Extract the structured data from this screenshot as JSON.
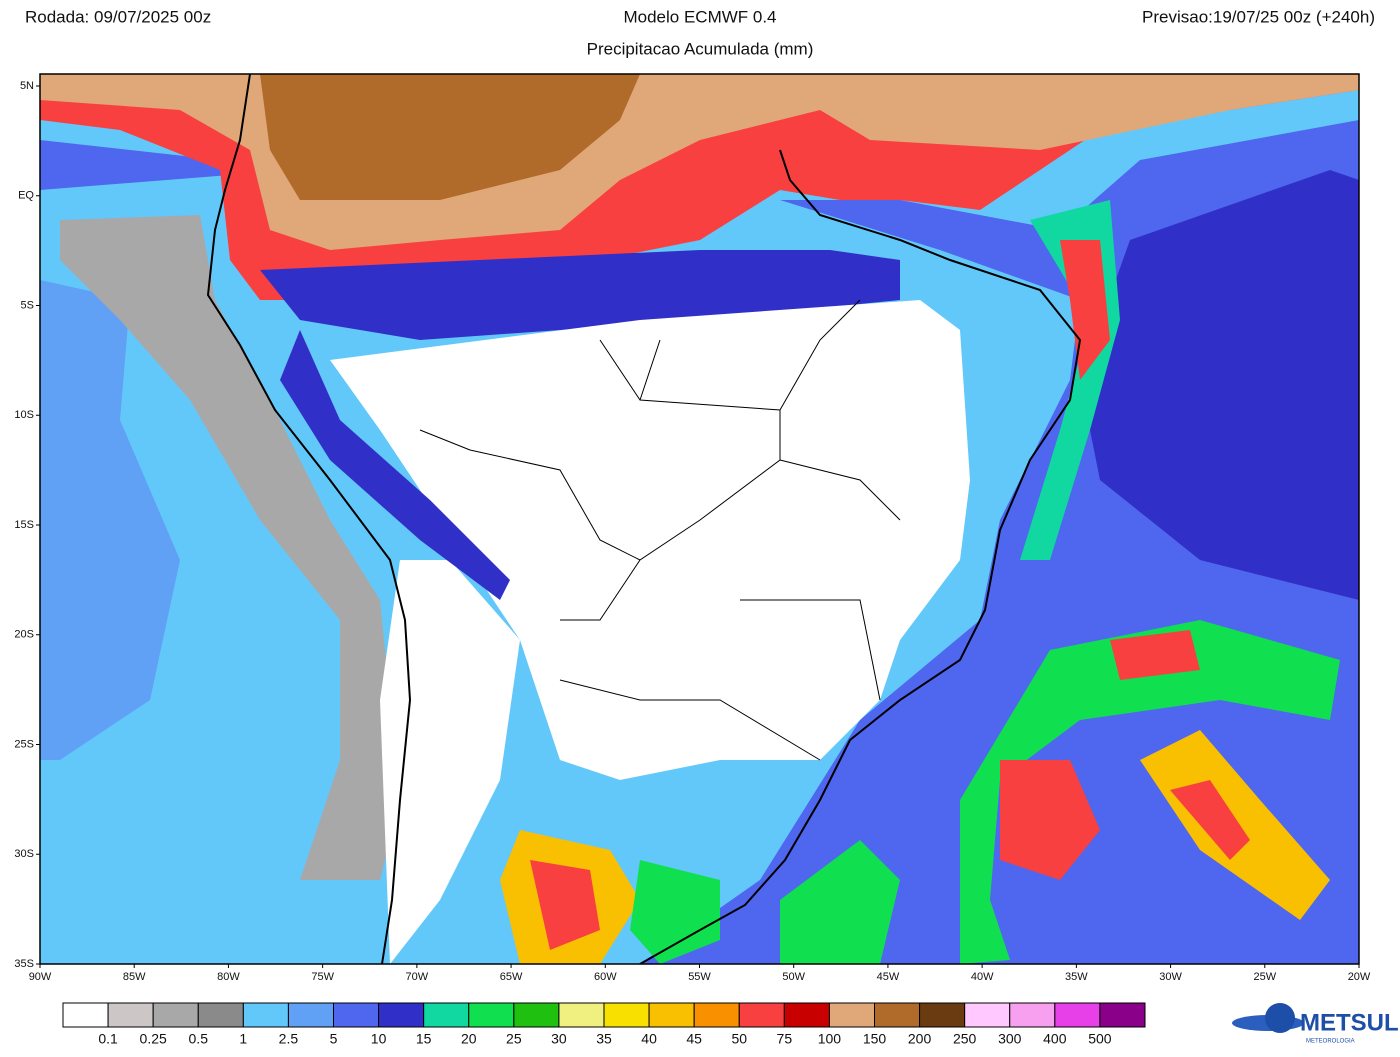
{
  "header": {
    "run": "Rodada: 09/07/2025 00z",
    "model": "Modelo ECMWF 0.4",
    "forecast": "Previsao:19/07/25 00z (+240h)",
    "subtitle": "Precipitacao Acumulada (mm)"
  },
  "map": {
    "lat_labels": [
      "5N",
      "EQ",
      "5S",
      "10S",
      "15S",
      "20S",
      "25S",
      "30S",
      "35S"
    ],
    "lon_labels": [
      "90W",
      "85W",
      "80W",
      "75W",
      "70W",
      "65W",
      "60W",
      "55W",
      "50W",
      "45W",
      "40W",
      "35W",
      "30W",
      "25W",
      "20W"
    ]
  },
  "legend": {
    "colors": [
      "#ffffff",
      "#cdc6c6",
      "#a8a8a8",
      "#8a8a8a",
      "#62c8fa",
      "#60a0f5",
      "#4f66ee",
      "#3030c8",
      "#10d8a0",
      "#10e050",
      "#20c010",
      "#f0f080",
      "#f8e000",
      "#f8c000",
      "#f89000",
      "#f84040",
      "#c80000",
      "#e0a878",
      "#b06a2a",
      "#6a3a10",
      "#ffc8ff",
      "#f8a0f0",
      "#e840e8",
      "#8a0088"
    ],
    "labels": [
      "0.1",
      "0.25",
      "0.5",
      "1",
      "2.5",
      "5",
      "10",
      "15",
      "20",
      "25",
      "30",
      "35",
      "40",
      "45",
      "50",
      "75",
      "100",
      "150",
      "200",
      "250",
      "300",
      "400",
      "500"
    ]
  },
  "logo": {
    "name": "METSUL",
    "tagline": "METEOROLOGIA"
  }
}
